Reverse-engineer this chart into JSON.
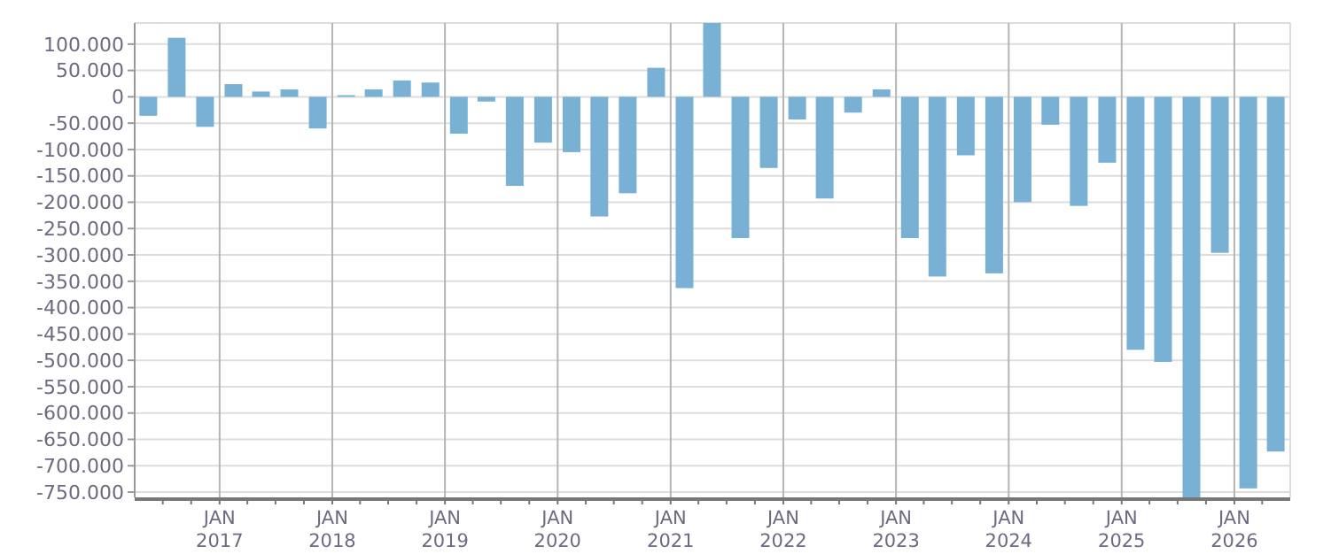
{
  "chart_data": {
    "type": "bar",
    "x": [
      "2016-05-15",
      "2016-08-15",
      "2016-11-15",
      "2017-02-15",
      "2017-05-15",
      "2017-08-15",
      "2017-11-15",
      "2018-02-15",
      "2018-05-15",
      "2018-08-15",
      "2018-11-15",
      "2019-02-15",
      "2019-05-15",
      "2019-08-15",
      "2019-11-15",
      "2020-02-15",
      "2020-05-15",
      "2020-08-15",
      "2020-11-15",
      "2021-02-15",
      "2021-05-15",
      "2021-08-15",
      "2021-11-15",
      "2022-02-15",
      "2022-05-15",
      "2022-08-15",
      "2022-11-15",
      "2023-02-15",
      "2023-05-15",
      "2023-08-15",
      "2023-11-15",
      "2024-02-15",
      "2024-05-15",
      "2024-08-15",
      "2024-11-15",
      "2025-02-15",
      "2025-05-15",
      "2025-08-15",
      "2025-11-15",
      "2026-02-15",
      "2026-05-15"
    ],
    "values": [
      -36000,
      112000,
      -57000,
      24000,
      10000,
      14000,
      -60000,
      3000,
      14000,
      31000,
      27000,
      -70000,
      -9000,
      -169000,
      -87000,
      -105000,
      -227000,
      -183000,
      55000,
      -363000,
      140000,
      -268000,
      -135000,
      -43000,
      -193000,
      -30000,
      14000,
      -268000,
      -341000,
      -111000,
      -335000,
      -200000,
      -53000,
      -207000,
      -125000,
      -480000,
      -503000,
      -760000,
      -296000,
      -743000,
      -673000
    ],
    "color": "#78b1d3",
    "xlim": [
      "2016-04-01",
      "2026-07-01"
    ],
    "ylim": [
      -760000,
      140000
    ],
    "yticks": [
      {
        "value": 100000,
        "label": "100.000"
      },
      {
        "value": 50000,
        "label": "50.000"
      },
      0,
      {
        "value": -50000,
        "label": "-50.000"
      },
      {
        "value": -100000,
        "label": "-100.000"
      },
      {
        "value": -150000,
        "label": "-150.000"
      },
      {
        "value": -200000,
        "label": "-200.000"
      },
      {
        "value": -250000,
        "label": "-250.000"
      },
      {
        "value": -300000,
        "label": "-300.000"
      },
      {
        "value": -350000,
        "label": "-350.000"
      },
      {
        "value": -400000,
        "label": "-400.000"
      },
      {
        "value": -450000,
        "label": "-450.000"
      },
      {
        "value": -500000,
        "label": "-500.000"
      },
      {
        "value": -550000,
        "label": "-550.000"
      },
      {
        "value": -600000,
        "label": "-600.000"
      },
      {
        "value": -650000,
        "label": "-650.000"
      },
      {
        "value": -700000,
        "label": "-700.000"
      },
      {
        "value": -750000,
        "label": "-750.000"
      }
    ],
    "xticks": [
      {
        "value": "2016-07-01",
        "label": null
      },
      {
        "value": "2016-10-01",
        "label": null
      },
      {
        "value": "2017-01-01",
        "label": "JAN\n2017"
      },
      {
        "value": "2017-04-01",
        "label": null
      },
      {
        "value": "2017-07-01",
        "label": null
      },
      {
        "value": "2017-10-01",
        "label": null
      },
      {
        "value": "2018-01-01",
        "label": "JAN\n2018"
      },
      {
        "value": "2018-04-01",
        "label": null
      },
      {
        "value": "2018-07-01",
        "label": null
      },
      {
        "value": "2018-10-01",
        "label": null
      },
      {
        "value": "2019-01-01",
        "label": "JAN\n2019"
      },
      {
        "value": "2019-04-01",
        "label": null
      },
      {
        "value": "2019-07-01",
        "label": null
      },
      {
        "value": "2019-10-01",
        "label": null
      },
      {
        "value": "2020-01-01",
        "label": "JAN\n2020"
      },
      {
        "value": "2020-04-01",
        "label": null
      },
      {
        "value": "2020-07-01",
        "label": null
      },
      {
        "value": "2020-10-01",
        "label": null
      },
      {
        "value": "2021-01-01",
        "label": "JAN\n2021"
      },
      {
        "value": "2021-04-01",
        "label": null
      },
      {
        "value": "2021-07-01",
        "label": null
      },
      {
        "value": "2021-10-01",
        "label": null
      },
      {
        "value": "2022-01-01",
        "label": "JAN\n2022"
      },
      {
        "value": "2022-04-01",
        "label": null
      },
      {
        "value": "2022-07-01",
        "label": null
      },
      {
        "value": "2022-10-01",
        "label": null
      },
      {
        "value": "2023-01-01",
        "label": "JAN\n2023"
      },
      {
        "value": "2023-04-01",
        "label": null
      },
      {
        "value": "2023-07-01",
        "label": null
      },
      {
        "value": "2023-10-01",
        "label": null
      },
      {
        "value": "2024-01-01",
        "label": "JAN\n2024"
      },
      {
        "value": "2024-04-01",
        "label": null
      },
      {
        "value": "2024-07-01",
        "label": null
      },
      {
        "value": "2024-10-01",
        "label": null
      },
      {
        "value": "2025-01-01",
        "label": "JAN\n2025"
      },
      {
        "value": "2025-04-01",
        "label": null
      },
      {
        "value": "2025-07-01",
        "label": null
      },
      {
        "value": "2025-10-01",
        "label": null
      },
      {
        "value": "2026-01-01",
        "label": "JAN\n2026"
      },
      {
        "value": "2026-04-01",
        "label": null
      }
    ],
    "grid": true
  }
}
